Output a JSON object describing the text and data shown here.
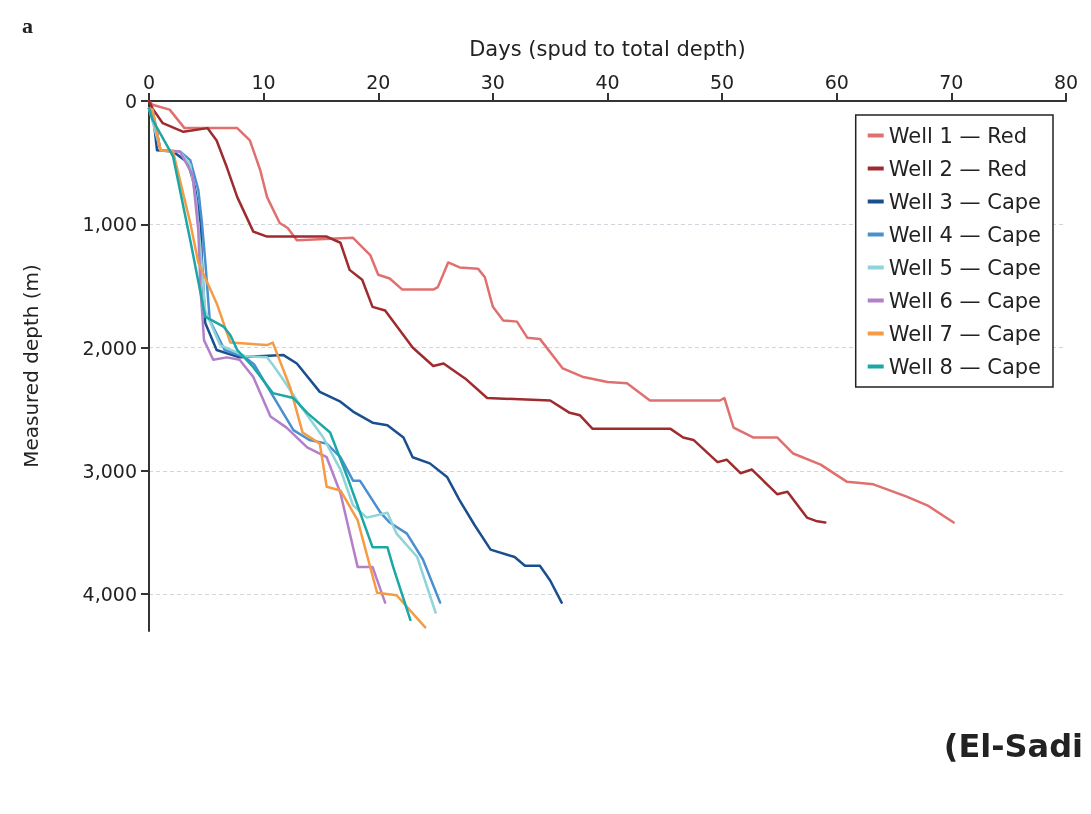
{
  "chart_data": {
    "type": "line",
    "xlabel": "Days (spud to total depth)",
    "ylabel": "Measured depth (m)",
    "xlim": [
      0,
      80
    ],
    "xticks": [
      0,
      10,
      20,
      30,
      40,
      50,
      60,
      70,
      80
    ],
    "ylim": [
      4300,
      0
    ],
    "yticks": [
      0,
      {
        "value": 1000,
        "label": "1,000"
      },
      {
        "value": 2000,
        "label": "2,000"
      },
      {
        "value": 3000,
        "label": "3,000"
      },
      {
        "value": 4000,
        "label": "4,000"
      }
    ],
    "grid": "y",
    "legend": "top right",
    "marker": "none",
    "line_style": "solid",
    "annotations": [
      "a",
      "(El-Sadi"
    ],
    "series": [
      {
        "name": "Well 1 — Red",
        "color": "#e0706f",
        "x": [
          0,
          0.3,
          1.8,
          3.1,
          7.7,
          8.8,
          9.7,
          10.3,
          11.4,
          12.1,
          12.9,
          17.8,
          19.3,
          20.0,
          21.0,
          22.1,
          24.8,
          25.2,
          26.1,
          27.1,
          28.7,
          29.3,
          30.0,
          30.9,
          32.1,
          33.0,
          34.1,
          36.1,
          37.9,
          40.0,
          41.7,
          43.7,
          49.8,
          50.2,
          51.0,
          52.7,
          54.8,
          56.2,
          58.6,
          60.9,
          63.2,
          66.1,
          67.9,
          70.2
        ],
        "values": [
          0,
          30,
          70,
          220,
          220,
          320,
          560,
          780,
          990,
          1030,
          1130,
          1110,
          1250,
          1410,
          1440,
          1530,
          1530,
          1510,
          1310,
          1350,
          1360,
          1430,
          1670,
          1780,
          1790,
          1920,
          1930,
          2170,
          2240,
          2280,
          2290,
          2430,
          2430,
          2410,
          2650,
          2730,
          2730,
          2860,
          2950,
          3090,
          3110,
          3210,
          3280,
          3420
        ]
      },
      {
        "name": "Well 2 — Red",
        "color": "#9e2b2e",
        "x": [
          0,
          0.3,
          1.2,
          3.0,
          5.1,
          5.9,
          6.8,
          7.7,
          9.1,
          10.3,
          15.5,
          16.7,
          17.5,
          18.6,
          19.5,
          20.6,
          23.0,
          24.8,
          25.7,
          27.7,
          29.5,
          35.0,
          36.7,
          37.6,
          38.7,
          45.5,
          46.6,
          47.5,
          49.6,
          50.4,
          51.6,
          52.6,
          54.8,
          55.7,
          57.4,
          58.3,
          59.0
        ],
        "values": [
          0,
          60,
          180,
          250,
          220,
          320,
          540,
          780,
          1060,
          1100,
          1100,
          1150,
          1370,
          1450,
          1670,
          1700,
          2000,
          2150,
          2130,
          2260,
          2410,
          2430,
          2530,
          2550,
          2660,
          2660,
          2730,
          2750,
          2930,
          2910,
          3020,
          2990,
          3190,
          3170,
          3380,
          3410,
          3420
        ]
      },
      {
        "name": "Well 3 — Cape",
        "color": "#1a4f8f",
        "x": [
          0,
          0.3,
          0.7,
          2.1,
          3.4,
          4.0,
          4.5,
          4.6,
          4.9,
          5.9,
          7.9,
          11.7,
          12.9,
          14.9,
          16.7,
          17.8,
          19.5,
          20.8,
          22.2,
          23.0,
          24.5,
          26.0,
          27.1,
          28.4,
          29.8,
          31.9,
          32.8,
          34.1,
          35.0,
          36.0
        ],
        "values": [
          60,
          70,
          400,
          410,
          500,
          700,
          990,
          1270,
          1800,
          2020,
          2080,
          2060,
          2130,
          2360,
          2440,
          2520,
          2610,
          2630,
          2730,
          2890,
          2940,
          3050,
          3240,
          3440,
          3640,
          3700,
          3770,
          3770,
          3890,
          4070
        ]
      },
      {
        "name": "Well 4 — Cape",
        "color": "#4a8fd0",
        "x": [
          0,
          0.3,
          1.0,
          2.7,
          3.6,
          4.3,
          4.6,
          4.9,
          5.3,
          6.6,
          8.4,
          9.2,
          9.7,
          10.8,
          12.6,
          14.0,
          15.5,
          16.7,
          17.8,
          18.4,
          20.2,
          21.0,
          22.5,
          23.9,
          25.4
        ],
        "values": [
          60,
          70,
          400,
          410,
          480,
          720,
          970,
          1290,
          1780,
          2020,
          2080,
          2140,
          2220,
          2390,
          2670,
          2750,
          2780,
          2890,
          3080,
          3080,
          3340,
          3420,
          3510,
          3720,
          4070
        ]
      },
      {
        "name": "Well 5 — Cape",
        "color": "#8fd4d8",
        "x": [
          0,
          1.0,
          2.7,
          3.6,
          4.1,
          4.5,
          4.9,
          6.2,
          8.4,
          10.3,
          10.8,
          11.7,
          13.2,
          15.2,
          16.7,
          17.8,
          19.0,
          20.8,
          21.6,
          23.4,
          25.0
        ],
        "values": [
          60,
          400,
          410,
          520,
          800,
          1210,
          1700,
          1980,
          2070,
          2080,
          2140,
          2260,
          2470,
          2730,
          2990,
          3280,
          3380,
          3340,
          3510,
          3700,
          4150
        ]
      },
      {
        "name": "Well 6 — Cape",
        "color": "#b47fc9",
        "x": [
          0,
          0.3,
          1.0,
          2.7,
          3.8,
          4.3,
          4.5,
          4.8,
          5.6,
          6.8,
          7.9,
          9.1,
          10.6,
          12.0,
          13.8,
          15.5,
          16.7,
          18.2,
          19.5,
          20.6
        ],
        "values": [
          60,
          70,
          400,
          410,
          600,
          1050,
          1530,
          1940,
          2100,
          2080,
          2100,
          2240,
          2560,
          2650,
          2810,
          2890,
          3180,
          3780,
          3780,
          4070
        ]
      },
      {
        "name": "Well 7 — Cape",
        "color": "#f59b45",
        "x": [
          0,
          0.3,
          1.0,
          2.1,
          3.6,
          4.3,
          5.9,
          7.1,
          10.3,
          10.8,
          12.3,
          13.4,
          14.9,
          15.5,
          16.7,
          18.2,
          19.9,
          21.6,
          24.1
        ],
        "values": [
          60,
          70,
          400,
          410,
          990,
          1310,
          1640,
          1960,
          1980,
          1960,
          2320,
          2690,
          2780,
          3130,
          3160,
          3400,
          3990,
          4010,
          4270
        ]
      },
      {
        "name": "Well 8 — Cape",
        "color": "#1aa7a5",
        "x": [
          0,
          0.3,
          2.1,
          3.6,
          4.9,
          6.5,
          7.1,
          7.7,
          9.1,
          10.8,
          12.6,
          13.8,
          15.8,
          17.3,
          19.5,
          20.8,
          21.3,
          22.8
        ],
        "values": [
          60,
          150,
          450,
          1130,
          1750,
          1830,
          1900,
          2020,
          2160,
          2370,
          2410,
          2530,
          2690,
          3050,
          3620,
          3620,
          3780,
          4210
        ]
      }
    ]
  }
}
